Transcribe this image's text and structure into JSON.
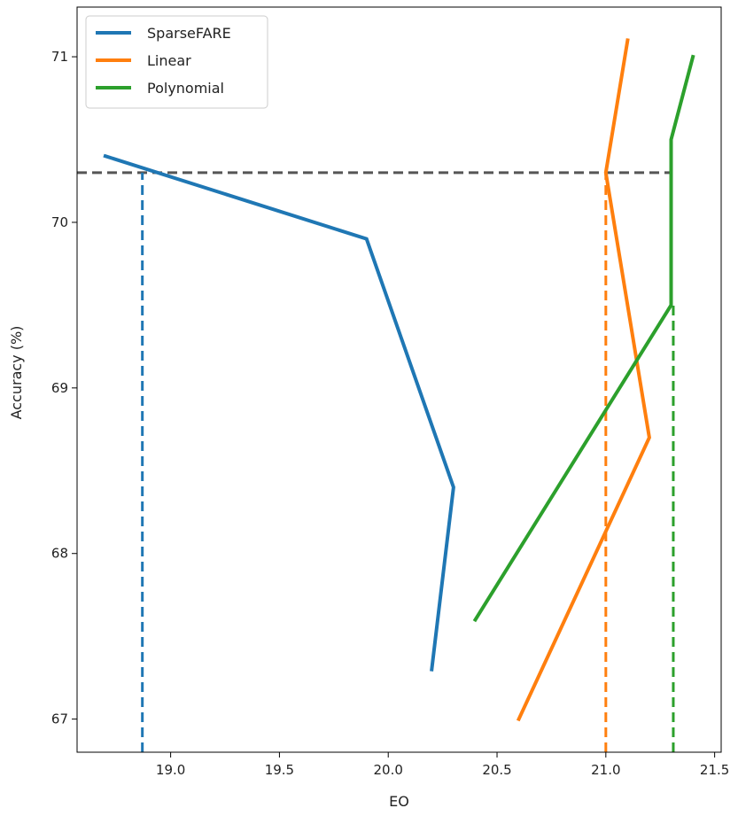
{
  "chart_data": {
    "type": "line",
    "xlabel": "EO",
    "ylabel": "Accuracy (%)",
    "xlim": [
      18.57,
      21.53
    ],
    "ylim": [
      66.8,
      71.3
    ],
    "xticks": [
      19.0,
      19.5,
      20.0,
      20.5,
      21.0,
      21.5
    ],
    "xtick_labels": [
      "19.0",
      "19.5",
      "20.0",
      "20.5",
      "21.0",
      "21.5"
    ],
    "yticks": [
      67,
      68,
      69,
      70,
      71
    ],
    "ytick_labels": [
      "67",
      "68",
      "69",
      "70",
      "71"
    ],
    "legend_position": "top-left",
    "series": [
      {
        "name": "SparseFARE",
        "color": "#1f77b4",
        "x": [
          18.7,
          19.9,
          20.3,
          20.2
        ],
        "y": [
          70.4,
          69.9,
          68.4,
          67.3
        ]
      },
      {
        "name": "Linear",
        "color": "#ff7f0e",
        "x": [
          21.1,
          21.0,
          21.2,
          20.6
        ],
        "y": [
          71.1,
          70.3,
          68.7,
          67.0
        ]
      },
      {
        "name": "Polynomial",
        "color": "#2ca02c",
        "x": [
          21.4,
          21.3,
          21.3,
          20.4
        ],
        "y": [
          71.0,
          70.5,
          69.5,
          67.6
        ]
      }
    ],
    "reference_lines": {
      "horizontal": {
        "y": 70.3,
        "x_from": 18.57,
        "x_to": 21.3,
        "color": "#555555"
      },
      "vertical": [
        {
          "x": 18.87,
          "y_to": 70.3,
          "color": "#1f77b4"
        },
        {
          "x": 21.0,
          "y_to": 70.3,
          "color": "#ff7f0e"
        },
        {
          "x": 21.31,
          "y_to": 69.5,
          "color": "#2ca02c"
        }
      ]
    }
  }
}
